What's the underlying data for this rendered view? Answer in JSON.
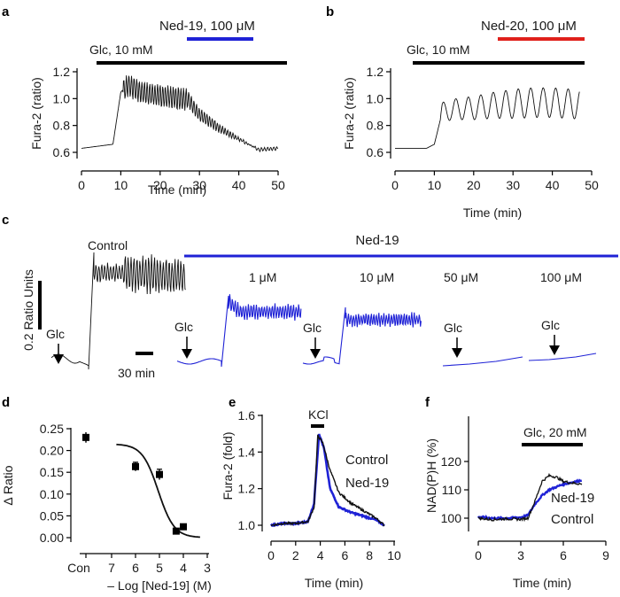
{
  "panels": {
    "a": {
      "label": "a",
      "glc": "Glc, 10 mM",
      "drug": "Ned-19, 100 μM",
      "drug_color": "#1f22d6",
      "xlabel": "Time (min)",
      "ylabel": "Fura-2 (ratio)",
      "xticks": [
        "0",
        "10",
        "20",
        "30",
        "40",
        "50"
      ],
      "yticks": [
        "0.6",
        "0.8",
        "1.0",
        "1.2"
      ]
    },
    "b": {
      "label": "b",
      "glc": "Glc, 10 mM",
      "drug": "Ned-20, 100 μM",
      "drug_color": "#e0201b",
      "xlabel": "Time (min)",
      "ylabel": "Fura-2 (ratio)",
      "xticks": [
        "0",
        "10",
        "20",
        "30",
        "40",
        "50"
      ],
      "yticks": [
        "0.6",
        "0.8",
        "1.0",
        "1.2"
      ]
    },
    "c": {
      "label": "c",
      "control": "Control",
      "ned": "Ned-19",
      "scale_y": "0.2 Ratio Units",
      "scale_x": "30 min",
      "glc": "Glc",
      "doses": [
        "1 μM",
        "10 μM",
        "50 μM",
        "100 μM"
      ]
    },
    "d": {
      "label": "d",
      "xlabel": "– Log [Ned-19] (M)",
      "ylabel": "Δ Ratio",
      "con": "Con",
      "xticks": [
        "7",
        "6",
        "5",
        "4",
        "3"
      ],
      "yticks": [
        "0.00",
        "0.05",
        "0.10",
        "0.15",
        "0.20",
        "0.25"
      ]
    },
    "e": {
      "label": "e",
      "kcl": "KCl",
      "xlabel": "Time (min)",
      "ylabel": "Fura-2 (fold)",
      "legend": [
        "Control",
        "Ned-19"
      ],
      "xticks": [
        "0",
        "2",
        "4",
        "6",
        "8",
        "10"
      ],
      "yticks": [
        "1.0",
        "1.2",
        "1.4",
        "1.6"
      ]
    },
    "f": {
      "label": "f",
      "glc": "Glc, 20 mM",
      "xlabel": "Time (min)",
      "ylabel": "NAD(P)H (%)",
      "legend": [
        "Ned-19",
        "Control"
      ],
      "xticks": [
        "0",
        "3",
        "6",
        "9"
      ],
      "yticks": [
        "100",
        "110",
        "120"
      ]
    }
  },
  "colors": {
    "blue": "#1f22d6",
    "red": "#e0201b",
    "black": "#111111"
  },
  "chart_data": [
    {
      "panel": "a",
      "type": "line",
      "xlim": [
        0,
        50
      ],
      "ylim": [
        0.6,
        1.2
      ],
      "series": [
        {
          "x": [
            0,
            8,
            10,
            12,
            15,
            20,
            25,
            27,
            30,
            35,
            40,
            45,
            50
          ],
          "y": [
            0.63,
            0.66,
            1.05,
            1.1,
            1.05,
            1.02,
            1.0,
            1.0,
            0.88,
            0.78,
            0.7,
            0.62,
            0.63
          ]
        }
      ],
      "bars": [
        {
          "start": 4,
          "end": 50
        },
        {
          "start": 27,
          "end": 43
        }
      ]
    },
    {
      "panel": "b",
      "type": "line",
      "xlim": [
        0,
        50
      ],
      "ylim": [
        0.6,
        1.2
      ],
      "series": [
        {
          "x": [
            0,
            8,
            10,
            12,
            15,
            20,
            25,
            30,
            35,
            40,
            45,
            47
          ],
          "y": [
            0.63,
            0.63,
            0.66,
            0.9,
            0.92,
            0.93,
            0.95,
            0.96,
            0.97,
            0.97,
            0.96,
            0.96
          ]
        }
      ],
      "bars": [
        {
          "start": 4,
          "end": 48
        },
        {
          "start": 26,
          "end": 48
        }
      ]
    },
    {
      "panel": "d",
      "type": "scatter",
      "xlim": [
        7,
        3
      ],
      "ylim": [
        0,
        0.25
      ],
      "control": {
        "y": 0.23,
        "err": 0.012
      },
      "series": [
        {
          "x": [
            6,
            5,
            4.3,
            4
          ],
          "y": [
            0.163,
            0.145,
            0.015,
            0.025
          ],
          "err": [
            0.01,
            0.012,
            0.004,
            0.005
          ]
        }
      ]
    },
    {
      "panel": "e",
      "type": "line",
      "xlim": [
        0,
        10
      ],
      "ylim": [
        1.0,
        1.6
      ],
      "series": [
        {
          "name": "Control",
          "x": [
            0,
            1,
            2,
            3,
            3.5,
            3.8,
            4.2,
            4.8,
            5.5,
            6.5,
            7.5,
            8.5,
            9.2
          ],
          "y": [
            1.0,
            1.01,
            1.01,
            1.02,
            1.1,
            1.49,
            1.45,
            1.3,
            1.18,
            1.12,
            1.08,
            1.04,
            1.0
          ]
        },
        {
          "name": "Ned-19",
          "x": [
            0,
            1,
            2,
            3,
            3.5,
            3.9,
            4.3,
            4.8,
            5.5,
            6.5,
            7.5,
            8.5,
            9.2
          ],
          "y": [
            1.0,
            1.01,
            1.01,
            1.02,
            1.12,
            1.5,
            1.42,
            1.2,
            1.1,
            1.07,
            1.05,
            1.03,
            1.0
          ]
        }
      ],
      "bars": [
        {
          "start": 3.4,
          "end": 4.3
        }
      ]
    },
    {
      "panel": "f",
      "type": "line",
      "xlim": [
        0,
        9
      ],
      "ylim": [
        98,
        122
      ],
      "series": [
        {
          "name": "Control",
          "x": [
            0,
            1,
            2,
            3,
            3.5,
            4,
            4.5,
            5,
            5.5,
            6,
            6.5,
            7,
            7.3
          ],
          "y": [
            100,
            99.5,
            99.8,
            99.6,
            100,
            106,
            113,
            115,
            114.5,
            113,
            112.5,
            112.2,
            112
          ]
        },
        {
          "name": "Ned-19",
          "x": [
            0,
            1,
            2,
            3,
            3.5,
            4,
            4.5,
            5,
            5.5,
            6,
            6.5,
            7,
            7.3
          ],
          "y": [
            100.5,
            100,
            100,
            100.3,
            101,
            105,
            108,
            110,
            111,
            112,
            112.5,
            113,
            113.5
          ]
        }
      ],
      "bars": [
        {
          "start": 3.1,
          "end": 7.3
        }
      ]
    }
  ]
}
